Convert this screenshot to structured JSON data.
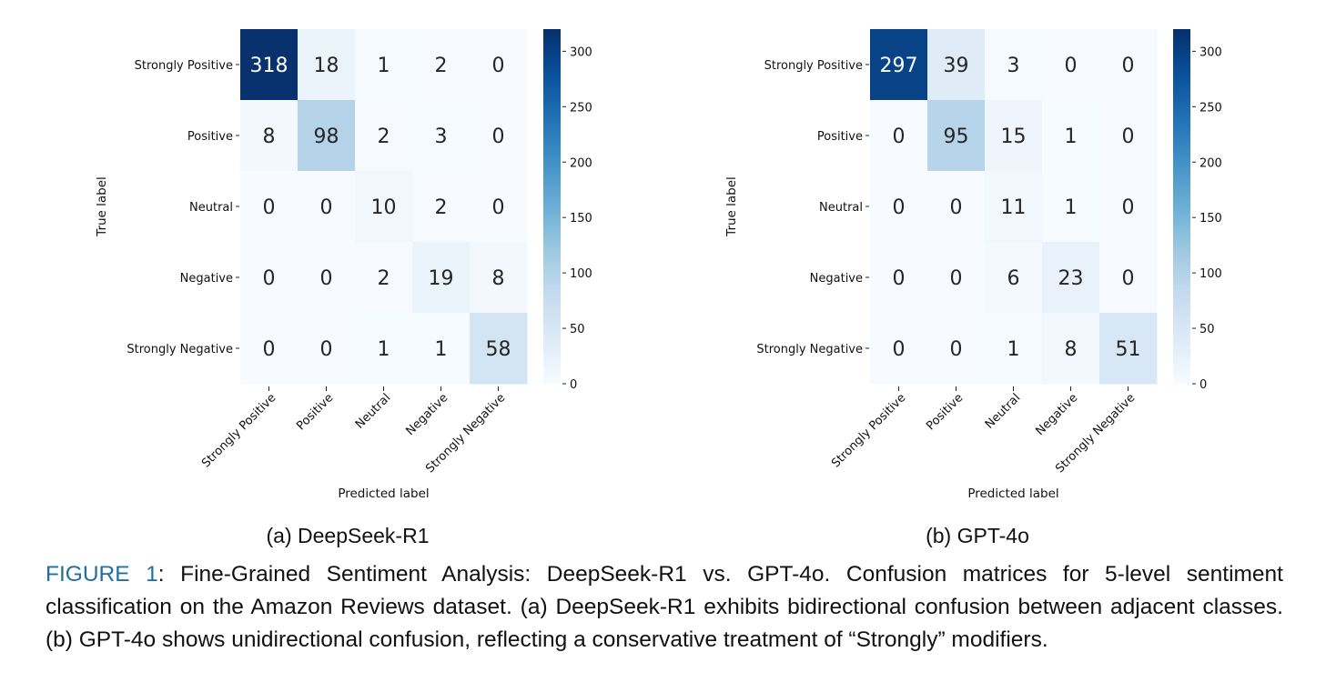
{
  "chart_data": [
    {
      "type": "heatmap",
      "id": "a",
      "title": "",
      "subcaption": "(a) DeepSeek-R1",
      "xlabel": "Predicted label",
      "ylabel": "True label",
      "x_tick_labels": [
        "Strongly Positive",
        "Positive",
        "Neutral",
        "Negative",
        "Strongly Negative"
      ],
      "y_tick_labels": [
        "Strongly Positive",
        "Positive",
        "Neutral",
        "Negative",
        "Strongly Negative"
      ],
      "matrix": [
        [
          318,
          18,
          1,
          2,
          0
        ],
        [
          8,
          98,
          2,
          3,
          0
        ],
        [
          0,
          0,
          10,
          2,
          0
        ],
        [
          0,
          0,
          2,
          19,
          8
        ],
        [
          0,
          0,
          1,
          1,
          58
        ]
      ],
      "colorbar": {
        "colormap": "Blues",
        "vmin": 0,
        "vmax": 320,
        "ticks": [
          0,
          50,
          100,
          150,
          200,
          250,
          300
        ]
      }
    },
    {
      "type": "heatmap",
      "id": "b",
      "title": "",
      "subcaption": "(b) GPT-4o",
      "xlabel": "Predicted label",
      "ylabel": "True label",
      "x_tick_labels": [
        "Strongly Positive",
        "Positive",
        "Neutral",
        "Negative",
        "Strongly Negative"
      ],
      "y_tick_labels": [
        "Strongly Positive",
        "Positive",
        "Neutral",
        "Negative",
        "Strongly Negative"
      ],
      "matrix": [
        [
          297,
          39,
          3,
          0,
          0
        ],
        [
          0,
          95,
          15,
          1,
          0
        ],
        [
          0,
          0,
          11,
          1,
          0
        ],
        [
          0,
          0,
          6,
          23,
          0
        ],
        [
          0,
          0,
          1,
          8,
          51
        ]
      ],
      "colorbar": {
        "colormap": "Blues",
        "vmin": 0,
        "vmax": 320,
        "ticks": [
          0,
          50,
          100,
          150,
          200,
          250,
          300
        ]
      }
    }
  ],
  "caption": {
    "label": "FIGURE 1",
    "label_color": "#1f6f9f",
    "text": ": Fine-Grained Sentiment Analysis: DeepSeek-R1 vs. GPT-4o. Confusion matrices for 5-level sentiment classification on the Amazon Reviews dataset. (a) DeepSeek-R1 exhibits bidirectional confusion between adjacent classes. (b) GPT-4o shows unidirectional confusion, reflecting a conservative treatment of “Strongly” modifiers."
  }
}
